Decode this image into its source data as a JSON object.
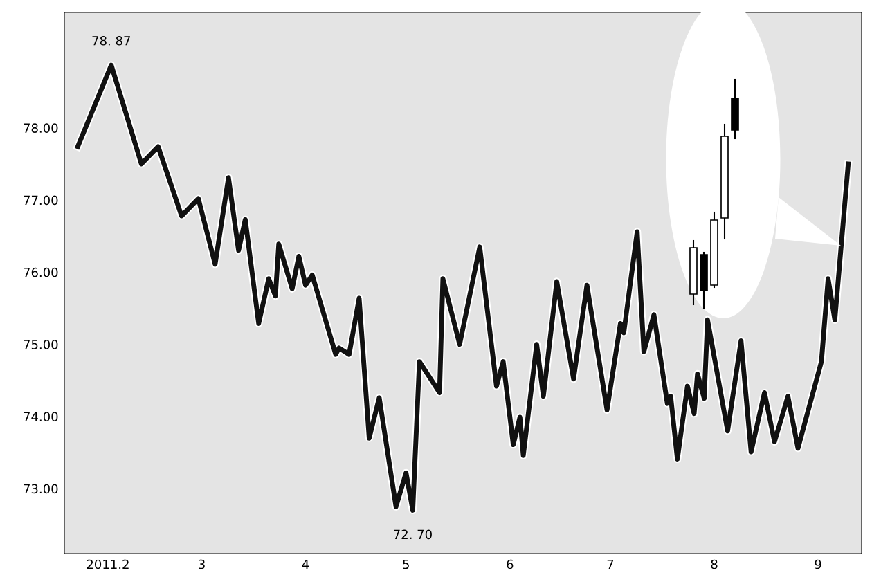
{
  "chart_data": {
    "type": "line",
    "x": [
      "2011-01-23",
      "2011-02-02",
      "2011-02-11",
      "2011-02-16",
      "2011-02-23",
      "2011-02-28",
      "2011-03-05",
      "2011-03-09",
      "2011-03-12",
      "2011-03-14",
      "2011-03-18",
      "2011-03-21",
      "2011-03-23",
      "2011-03-24",
      "2011-03-28",
      "2011-03-30",
      "2011-04-01",
      "2011-04-03",
      "2011-04-10",
      "2011-04-11",
      "2011-04-14",
      "2011-04-17",
      "2011-04-20",
      "2011-04-23",
      "2011-04-28",
      "2011-05-01",
      "2011-05-03",
      "2011-05-05",
      "2011-05-11",
      "2011-05-12",
      "2011-05-17",
      "2011-05-23",
      "2011-05-28",
      "2011-05-30",
      "2011-06-02",
      "2011-06-04",
      "2011-06-05",
      "2011-06-09",
      "2011-06-11",
      "2011-06-15",
      "2011-06-20",
      "2011-06-24",
      "2011-06-30",
      "2011-07-04",
      "2011-07-05",
      "2011-07-09",
      "2011-07-11",
      "2011-07-14",
      "2011-07-18",
      "2011-07-19",
      "2011-07-21",
      "2011-07-24",
      "2011-07-26",
      "2011-07-27",
      "2011-07-29",
      "2011-07-30",
      "2011-08-05",
      "2011-08-09",
      "2011-08-12",
      "2011-08-16",
      "2011-08-19",
      "2011-08-23",
      "2011-08-26",
      "2011-09-02",
      "2011-09-04",
      "2011-09-06",
      "2011-09-10"
    ],
    "series": [
      {
        "color": "#111111",
        "values": [
          77.74,
          78.87,
          77.5,
          77.74,
          76.78,
          77.02,
          76.11,
          77.31,
          76.3,
          76.73,
          75.29,
          75.91,
          75.67,
          76.39,
          75.77,
          76.22,
          75.82,
          75.96,
          74.86,
          74.95,
          74.86,
          75.64,
          73.7,
          74.26,
          72.75,
          73.22,
          72.7,
          74.76,
          74.33,
          75.91,
          75.0,
          76.35,
          74.42,
          74.76,
          73.61,
          73.99,
          73.46,
          75.0,
          74.28,
          75.87,
          74.52,
          75.82,
          74.09,
          75.29,
          75.16,
          76.56,
          74.9,
          75.41,
          74.18,
          74.28,
          73.41,
          74.42,
          74.04,
          74.59,
          74.25,
          75.34,
          73.8,
          75.05,
          73.51,
          74.33,
          73.65,
          74.28,
          73.56,
          74.76,
          75.91,
          75.34,
          77.5
        ]
      }
    ],
    "xlim": [
      "2011-01-19",
      "2011-09-14"
    ],
    "xticks": [
      {
        "value": "2011-02-01",
        "label": "2011.2"
      },
      {
        "value": "2011-03-01",
        "label": "3"
      },
      {
        "value": "2011-04-01",
        "label": "4"
      },
      {
        "value": "2011-05-01",
        "label": "5"
      },
      {
        "value": "2011-06-01",
        "label": "6"
      },
      {
        "value": "2011-07-01",
        "label": "7"
      },
      {
        "value": "2011-08-01",
        "label": "8"
      },
      {
        "value": "2011-09-01",
        "label": "9"
      }
    ],
    "ylim": [
      72.1,
      79.6
    ],
    "yticks": [
      {
        "value": 73,
        "label": "73.00"
      },
      {
        "value": 74,
        "label": "74.00"
      },
      {
        "value": 75,
        "label": "75.00"
      },
      {
        "value": 76,
        "label": "76.00"
      },
      {
        "value": 77,
        "label": "77.00"
      },
      {
        "value": 78,
        "label": "78.00"
      }
    ],
    "annotations": [
      {
        "text": "78. 87",
        "x": "2011-02-02",
        "y": 78.87
      },
      {
        "text": "72. 70",
        "x": "2011-05-03",
        "y": 72.7
      }
    ],
    "grid": false,
    "legend": false,
    "marker": "none",
    "line_style": "solid"
  }
}
